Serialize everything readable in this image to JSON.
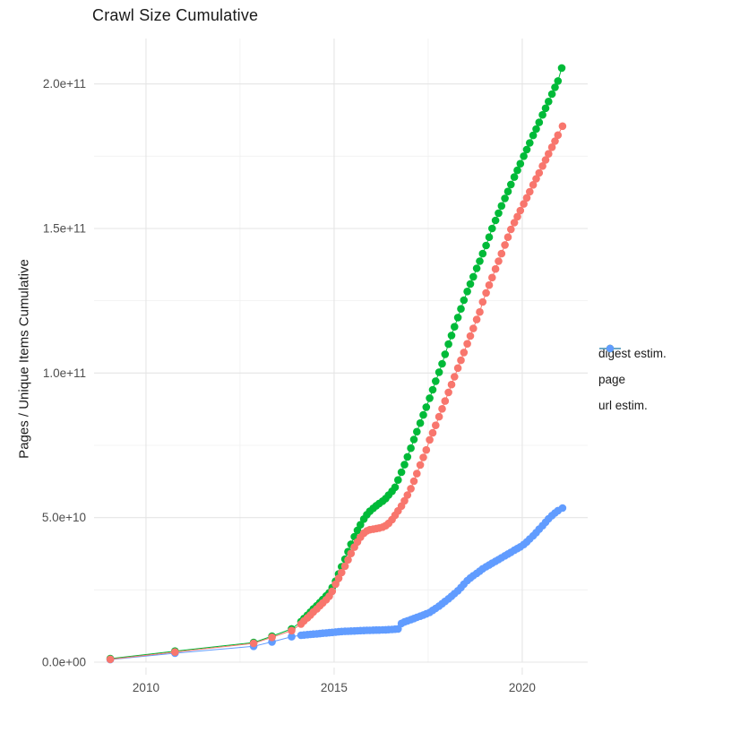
{
  "title": "Crawl Size Cumulative",
  "chart_data": {
    "type": "line",
    "title": "Crawl Size Cumulative",
    "xlabel": "",
    "ylabel": "Pages / Unique Items Cumulative",
    "xlim": [
      2008.62,
      2021.74
    ],
    "ylim_e9": [
      0,
      215.7
    ],
    "grid": true,
    "legend_position": "right",
    "values_unit": "pages, stored as multiples of 1e9",
    "x_ticks": {
      "major": [
        2010,
        2015,
        2020
      ],
      "labels": [
        "2010",
        "2015",
        "2020"
      ],
      "minor": [
        2012.5,
        2017.5
      ]
    },
    "y_ticks": {
      "major_e9": [
        0,
        50,
        100,
        150,
        200
      ],
      "labels": [
        "0.0e+00",
        "5.0e+10",
        "1.0e+11",
        "1.5e+11",
        "2.0e+11"
      ],
      "minor_e9": [
        25,
        75,
        125,
        175
      ]
    },
    "series": [
      {
        "name": "digest estim.",
        "color": "#F8766D",
        "points": [
          [
            2009.05,
            1.0
          ],
          [
            2010.77,
            3.5
          ],
          [
            2012.86,
            6.5
          ],
          [
            2013.35,
            8.6
          ],
          [
            2013.87,
            10.9
          ],
          [
            2014.12,
            13.2
          ],
          [
            2014.2,
            14.3
          ],
          [
            2014.29,
            15.3
          ],
          [
            2014.37,
            16.3
          ],
          [
            2014.45,
            17.4
          ],
          [
            2014.54,
            18.4
          ],
          [
            2014.62,
            19.5
          ],
          [
            2014.7,
            20.5
          ],
          [
            2014.79,
            21.6
          ],
          [
            2014.87,
            22.8
          ],
          [
            2014.95,
            24.5
          ],
          [
            2015.04,
            27.0
          ],
          [
            2015.12,
            29.0
          ],
          [
            2015.2,
            31.0
          ],
          [
            2015.29,
            33.2
          ],
          [
            2015.37,
            35.4
          ],
          [
            2015.45,
            37.6
          ],
          [
            2015.54,
            39.8
          ],
          [
            2015.62,
            41.6
          ],
          [
            2015.7,
            43.2
          ],
          [
            2015.79,
            44.6
          ],
          [
            2015.87,
            45.4
          ],
          [
            2015.95,
            45.8
          ],
          [
            2016.04,
            46.0
          ],
          [
            2016.12,
            46.2
          ],
          [
            2016.2,
            46.4
          ],
          [
            2016.29,
            46.7
          ],
          [
            2016.37,
            47.2
          ],
          [
            2016.45,
            48.0
          ],
          [
            2016.54,
            49.3
          ],
          [
            2016.62,
            50.8
          ],
          [
            2016.7,
            52.3
          ],
          [
            2016.79,
            54.0
          ],
          [
            2016.87,
            55.8
          ],
          [
            2016.95,
            57.8
          ],
          [
            2017.04,
            60.0
          ],
          [
            2017.12,
            62.6
          ],
          [
            2017.2,
            65.2
          ],
          [
            2017.29,
            68.2
          ],
          [
            2017.37,
            70.8
          ],
          [
            2017.45,
            73.4
          ],
          [
            2017.54,
            76.9
          ],
          [
            2017.62,
            79.3
          ],
          [
            2017.7,
            81.9
          ],
          [
            2017.79,
            84.9
          ],
          [
            2017.87,
            87.6
          ],
          [
            2017.95,
            90.3
          ],
          [
            2018.04,
            93.3
          ],
          [
            2018.12,
            96.0
          ],
          [
            2018.2,
            98.7
          ],
          [
            2018.29,
            101.7
          ],
          [
            2018.37,
            104.4
          ],
          [
            2018.45,
            107.1
          ],
          [
            2018.54,
            110.1
          ],
          [
            2018.62,
            112.8
          ],
          [
            2018.7,
            115.4
          ],
          [
            2018.79,
            118.5
          ],
          [
            2018.87,
            121.1
          ],
          [
            2018.95,
            124.6
          ],
          [
            2019.04,
            127.7
          ],
          [
            2019.12,
            130.4
          ],
          [
            2019.2,
            133.0
          ],
          [
            2019.29,
            136.0
          ],
          [
            2019.37,
            138.7
          ],
          [
            2019.45,
            141.3
          ],
          [
            2019.54,
            144.3
          ],
          [
            2019.62,
            147.0
          ],
          [
            2019.7,
            149.7
          ],
          [
            2019.79,
            152.0
          ],
          [
            2019.87,
            154.1
          ],
          [
            2019.95,
            156.2
          ],
          [
            2020.04,
            158.5
          ],
          [
            2020.12,
            160.6
          ],
          [
            2020.2,
            162.7
          ],
          [
            2020.29,
            165.1
          ],
          [
            2020.37,
            167.2
          ],
          [
            2020.45,
            169.2
          ],
          [
            2020.54,
            171.6
          ],
          [
            2020.62,
            173.7
          ],
          [
            2020.7,
            175.8
          ],
          [
            2020.79,
            178.1
          ],
          [
            2020.87,
            180.2
          ],
          [
            2020.95,
            182.3
          ],
          [
            2021.07,
            185.4
          ]
        ]
      },
      {
        "name": "page",
        "color": "#00BA38",
        "points": [
          [
            2009.05,
            1.2
          ],
          [
            2010.77,
            3.8
          ],
          [
            2012.86,
            6.8
          ],
          [
            2013.35,
            9.0
          ],
          [
            2013.87,
            11.5
          ],
          [
            2014.12,
            14.0
          ],
          [
            2014.2,
            15.1
          ],
          [
            2014.29,
            16.2
          ],
          [
            2014.37,
            17.3
          ],
          [
            2014.45,
            18.4
          ],
          [
            2014.54,
            19.5
          ],
          [
            2014.62,
            20.6
          ],
          [
            2014.7,
            21.7
          ],
          [
            2014.79,
            22.9
          ],
          [
            2014.87,
            24.0
          ],
          [
            2014.95,
            25.8
          ],
          [
            2015.04,
            28.0
          ],
          [
            2015.12,
            30.5
          ],
          [
            2015.2,
            33.0
          ],
          [
            2015.29,
            35.6
          ],
          [
            2015.37,
            38.2
          ],
          [
            2015.45,
            40.8
          ],
          [
            2015.54,
            43.4
          ],
          [
            2015.62,
            45.6
          ],
          [
            2015.7,
            47.5
          ],
          [
            2015.79,
            49.5
          ],
          [
            2015.87,
            51.0
          ],
          [
            2015.95,
            52.2
          ],
          [
            2016.04,
            53.2
          ],
          [
            2016.12,
            54.1
          ],
          [
            2016.2,
            54.9
          ],
          [
            2016.29,
            55.7
          ],
          [
            2016.37,
            56.6
          ],
          [
            2016.45,
            57.8
          ],
          [
            2016.54,
            59.1
          ],
          [
            2016.62,
            60.5
          ],
          [
            2016.7,
            63.0
          ],
          [
            2016.79,
            65.7
          ],
          [
            2016.87,
            68.3
          ],
          [
            2016.95,
            71.0
          ],
          [
            2017.04,
            74.0
          ],
          [
            2017.12,
            77.0
          ],
          [
            2017.2,
            79.7
          ],
          [
            2017.29,
            82.7
          ],
          [
            2017.37,
            85.5
          ],
          [
            2017.45,
            88.2
          ],
          [
            2017.54,
            91.3
          ],
          [
            2017.62,
            94.2
          ],
          [
            2017.7,
            97.2
          ],
          [
            2017.79,
            100.3
          ],
          [
            2017.87,
            103.2
          ],
          [
            2017.95,
            106.5
          ],
          [
            2018.04,
            110.0
          ],
          [
            2018.12,
            113.0
          ],
          [
            2018.2,
            116.0
          ],
          [
            2018.29,
            119.2
          ],
          [
            2018.37,
            122.2
          ],
          [
            2018.45,
            125.2
          ],
          [
            2018.54,
            128.2
          ],
          [
            2018.62,
            130.8
          ],
          [
            2018.7,
            133.3
          ],
          [
            2018.79,
            136.2
          ],
          [
            2018.87,
            138.7
          ],
          [
            2018.95,
            141.3
          ],
          [
            2019.04,
            144.1
          ],
          [
            2019.12,
            147.0
          ],
          [
            2019.2,
            150.0
          ],
          [
            2019.29,
            152.8
          ],
          [
            2019.37,
            155.3
          ],
          [
            2019.45,
            157.8
          ],
          [
            2019.54,
            160.4
          ],
          [
            2019.62,
            162.8
          ],
          [
            2019.7,
            165.2
          ],
          [
            2019.79,
            167.8
          ],
          [
            2019.87,
            170.1
          ],
          [
            2019.95,
            172.4
          ],
          [
            2020.04,
            175.0
          ],
          [
            2020.12,
            177.3
          ],
          [
            2020.2,
            179.6
          ],
          [
            2020.29,
            182.2
          ],
          [
            2020.37,
            184.4
          ],
          [
            2020.45,
            186.7
          ],
          [
            2020.54,
            189.3
          ],
          [
            2020.62,
            191.6
          ],
          [
            2020.7,
            193.9
          ],
          [
            2020.79,
            196.5
          ],
          [
            2020.87,
            198.8
          ],
          [
            2020.95,
            201.0
          ],
          [
            2021.05,
            205.5
          ]
        ]
      },
      {
        "name": "url estim.",
        "color": "#619CFF",
        "points": [
          [
            2009.05,
            0.9
          ],
          [
            2010.77,
            3.1
          ],
          [
            2012.86,
            5.5
          ],
          [
            2013.35,
            7.0
          ],
          [
            2013.87,
            8.8
          ],
          [
            2014.12,
            9.3
          ],
          [
            2014.2,
            9.4
          ],
          [
            2014.29,
            9.5
          ],
          [
            2014.37,
            9.6
          ],
          [
            2014.45,
            9.7
          ],
          [
            2014.54,
            9.8
          ],
          [
            2014.62,
            9.9
          ],
          [
            2014.7,
            10.0
          ],
          [
            2014.79,
            10.1
          ],
          [
            2014.87,
            10.2
          ],
          [
            2014.95,
            10.3
          ],
          [
            2015.04,
            10.4
          ],
          [
            2015.12,
            10.5
          ],
          [
            2015.2,
            10.6
          ],
          [
            2015.29,
            10.65
          ],
          [
            2015.37,
            10.7
          ],
          [
            2015.45,
            10.75
          ],
          [
            2015.54,
            10.8
          ],
          [
            2015.62,
            10.85
          ],
          [
            2015.7,
            10.9
          ],
          [
            2015.79,
            10.95
          ],
          [
            2015.87,
            11.0
          ],
          [
            2015.95,
            11.0
          ],
          [
            2016.04,
            11.05
          ],
          [
            2016.12,
            11.1
          ],
          [
            2016.2,
            11.1
          ],
          [
            2016.29,
            11.15
          ],
          [
            2016.37,
            11.2
          ],
          [
            2016.45,
            11.25
          ],
          [
            2016.54,
            11.3
          ],
          [
            2016.62,
            11.4
          ],
          [
            2016.7,
            11.5
          ],
          [
            2016.79,
            13.4
          ],
          [
            2016.87,
            13.9
          ],
          [
            2016.95,
            14.3
          ],
          [
            2017.04,
            14.7
          ],
          [
            2017.12,
            15.1
          ],
          [
            2017.2,
            15.5
          ],
          [
            2017.29,
            15.9
          ],
          [
            2017.37,
            16.3
          ],
          [
            2017.45,
            16.7
          ],
          [
            2017.54,
            17.2
          ],
          [
            2017.62,
            17.9
          ],
          [
            2017.7,
            18.6
          ],
          [
            2017.79,
            19.4
          ],
          [
            2017.87,
            20.2
          ],
          [
            2017.95,
            21.0
          ],
          [
            2018.04,
            21.9
          ],
          [
            2018.12,
            22.8
          ],
          [
            2018.2,
            23.7
          ],
          [
            2018.29,
            24.7
          ],
          [
            2018.37,
            25.8
          ],
          [
            2018.45,
            27.0
          ],
          [
            2018.54,
            28.2
          ],
          [
            2018.62,
            29.1
          ],
          [
            2018.7,
            29.9
          ],
          [
            2018.79,
            30.7
          ],
          [
            2018.87,
            31.5
          ],
          [
            2018.95,
            32.3
          ],
          [
            2019.04,
            33.0
          ],
          [
            2019.12,
            33.6
          ],
          [
            2019.2,
            34.2
          ],
          [
            2019.29,
            34.9
          ],
          [
            2019.37,
            35.5
          ],
          [
            2019.45,
            36.1
          ],
          [
            2019.54,
            36.8
          ],
          [
            2019.62,
            37.4
          ],
          [
            2019.7,
            38.0
          ],
          [
            2019.79,
            38.7
          ],
          [
            2019.87,
            39.3
          ],
          [
            2019.95,
            39.9
          ],
          [
            2020.04,
            40.7
          ],
          [
            2020.12,
            41.6
          ],
          [
            2020.2,
            42.6
          ],
          [
            2020.29,
            43.7
          ],
          [
            2020.37,
            44.8
          ],
          [
            2020.45,
            46.0
          ],
          [
            2020.54,
            47.2
          ],
          [
            2020.62,
            48.4
          ],
          [
            2020.7,
            49.6
          ],
          [
            2020.79,
            50.7
          ],
          [
            2020.87,
            51.6
          ],
          [
            2020.95,
            52.4
          ],
          [
            2021.07,
            53.3
          ]
        ]
      }
    ],
    "style": {
      "major_grid_color": "#e5e5e5",
      "minor_grid_color": "#f0f0f0",
      "tick_label_color": "#4d4d4d",
      "point_radius": 4.3
    }
  }
}
